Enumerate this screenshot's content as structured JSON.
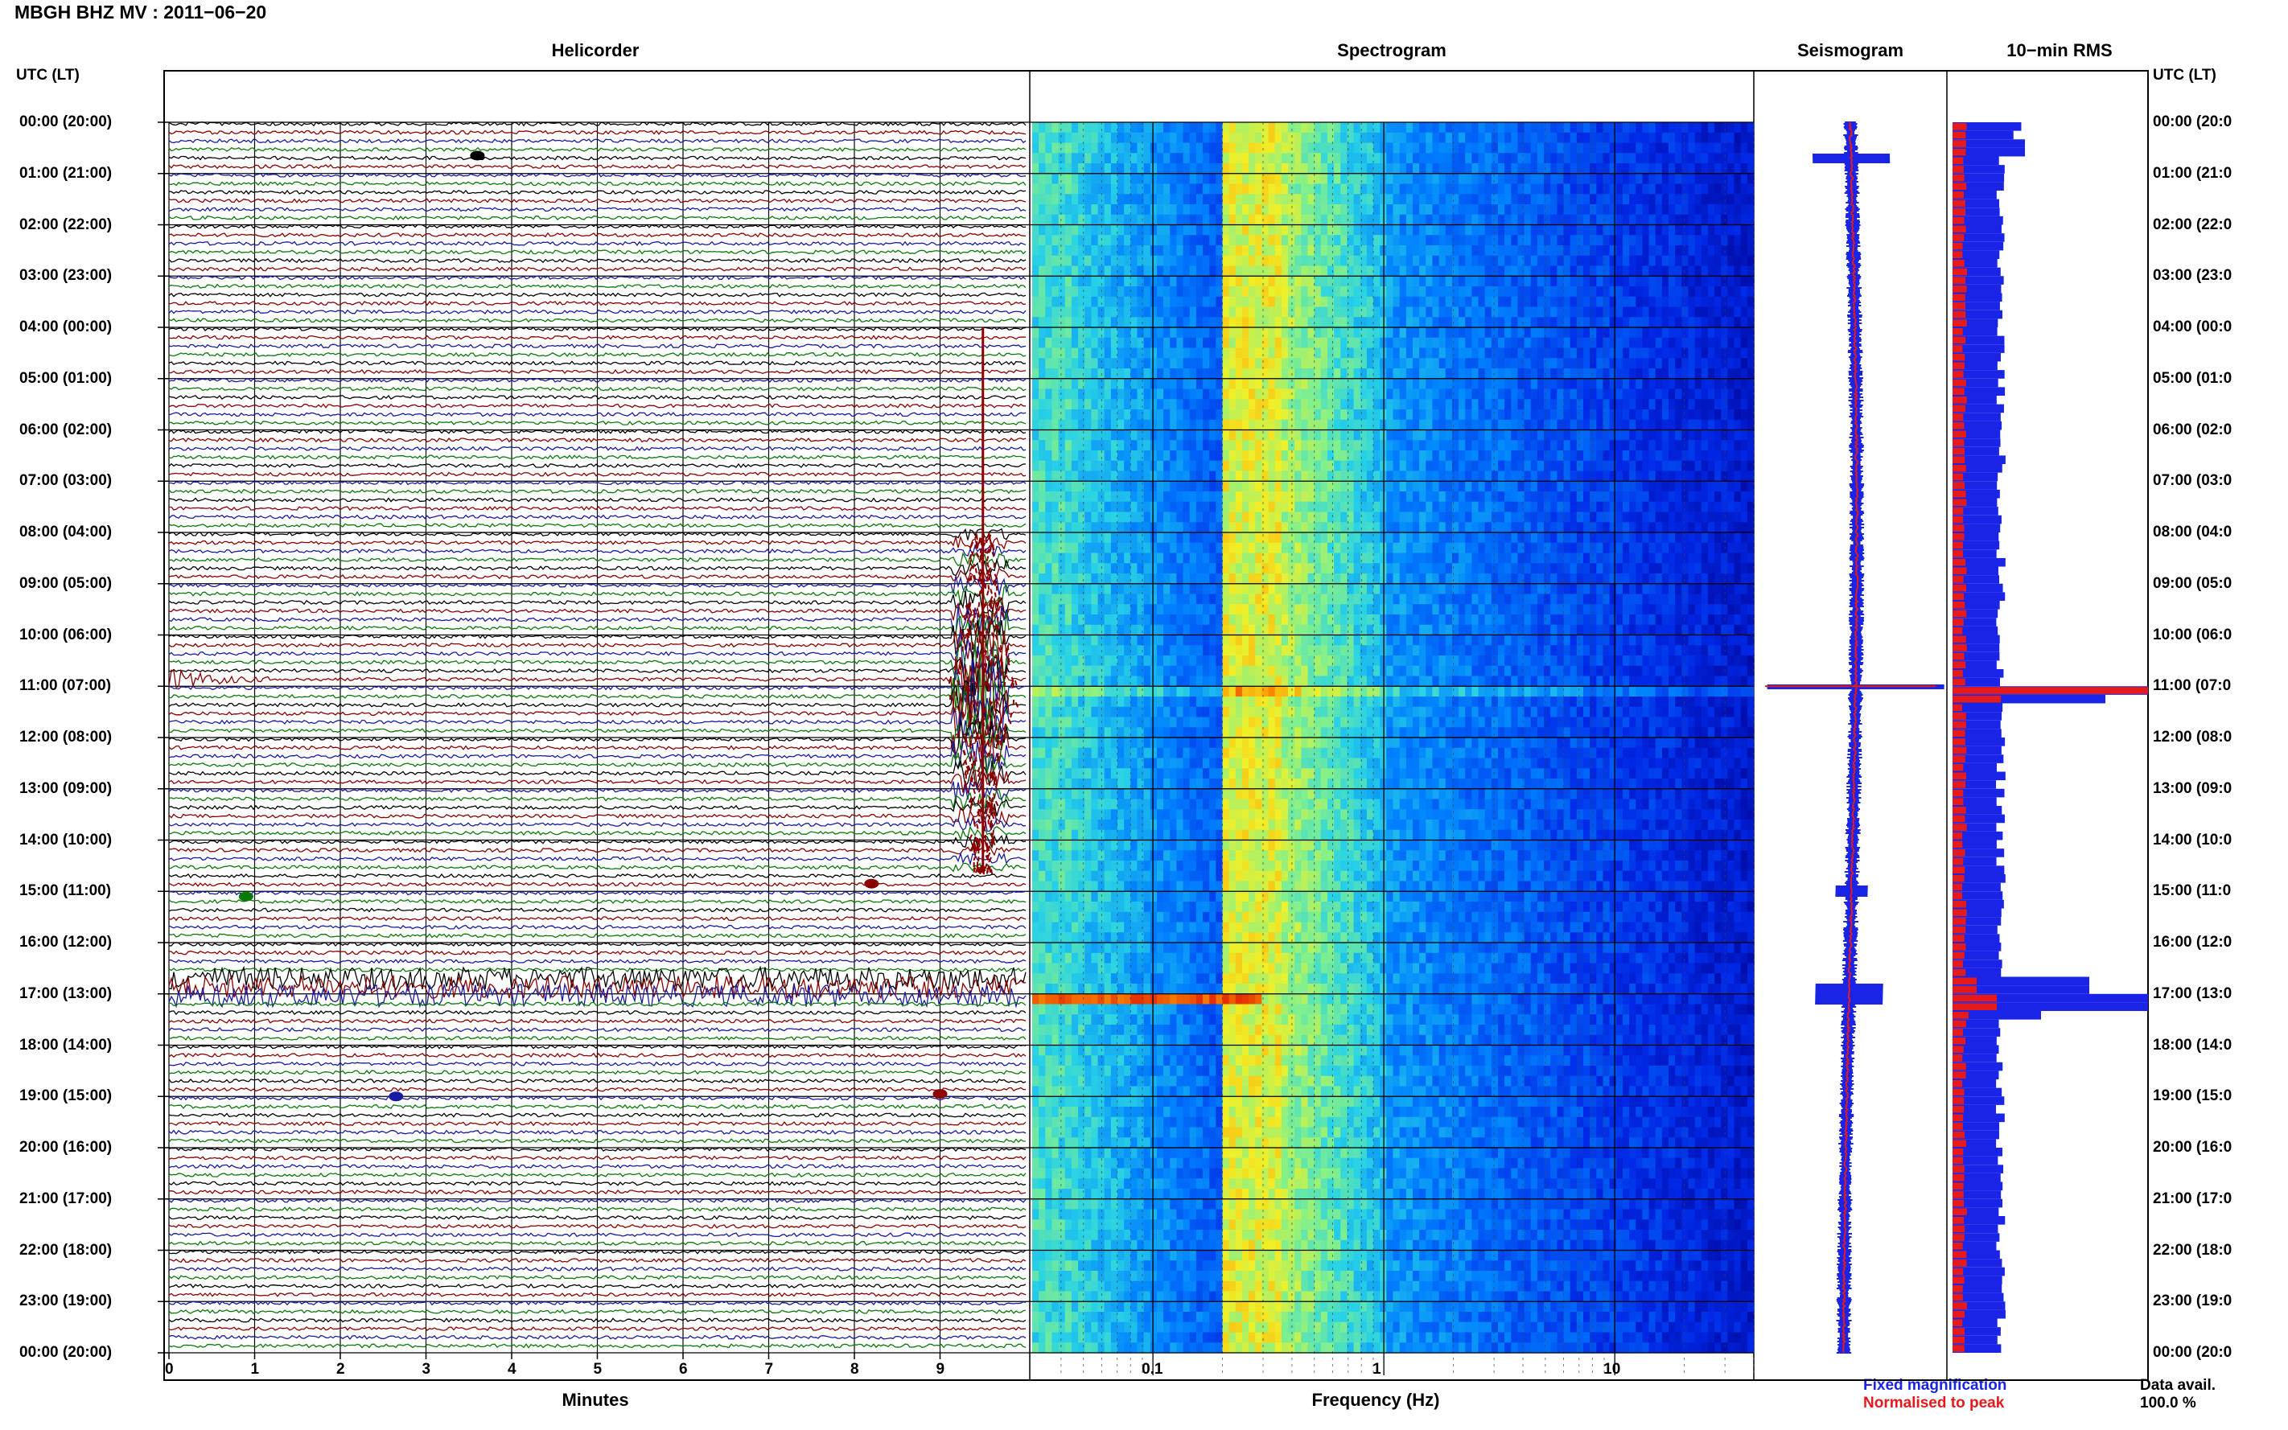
{
  "header": {
    "title": "MBGH BHZ MV : 2011−06−20"
  },
  "panels": {
    "helicorder": "Helicorder",
    "spectrogram": "Spectrogram",
    "seismogram": "Seismogram",
    "rms": "10−min RMS"
  },
  "axis": {
    "left_label": "UTC (LT)",
    "right_label": "UTC (LT)",
    "xlabel_helicorder": "Minutes",
    "xlabel_spectrogram": "Frequency (Hz)",
    "time_ticks_left": [
      "00:00 (20:00)",
      "01:00 (21:00)",
      "02:00 (22:00)",
      "03:00 (23:00)",
      "04:00 (00:00)",
      "05:00 (01:00)",
      "06:00 (02:00)",
      "07:00 (03:00)",
      "08:00 (04:00)",
      "09:00 (05:00)",
      "10:00 (06:00)",
      "11:00 (07:00)",
      "12:00 (08:00)",
      "13:00 (09:00)",
      "14:00 (10:00)",
      "15:00 (11:00)",
      "16:00 (12:00)",
      "17:00 (13:00)",
      "18:00 (14:00)",
      "19:00 (15:00)",
      "20:00 (16:00)",
      "21:00 (17:00)",
      "22:00 (18:00)",
      "23:00 (19:00)",
      "00:00 (20:00)"
    ],
    "time_ticks_right": [
      "00:00 (20:0",
      "01:00 (21:0",
      "02:00 (22:0",
      "03:00 (23:0",
      "04:00 (00:0",
      "05:00 (01:0",
      "06:00 (02:0",
      "07:00 (03:0",
      "08:00 (04:0",
      "09:00 (05:0",
      "10:00 (06:0",
      "11:00 (07:0",
      "12:00 (08:0",
      "13:00 (09:0",
      "14:00 (10:0",
      "15:00 (11:0",
      "16:00 (12:0",
      "17:00 (13:0",
      "18:00 (14:0",
      "19:00 (15:0",
      "20:00 (16:0",
      "21:00 (17:0",
      "22:00 (18:0",
      "23:00 (19:0",
      "00:00 (20:0"
    ],
    "minute_ticks": [
      "0",
      "1",
      "2",
      "3",
      "4",
      "5",
      "6",
      "7",
      "8",
      "9"
    ],
    "freq_ticks": [
      "0.1",
      "1",
      "10"
    ]
  },
  "legend": {
    "fixed": "Fixed magnification",
    "normalised": "Normalised to peak",
    "data_avail_label": "Data avail.",
    "data_avail_value": "100.0 %"
  },
  "colors": {
    "trace_cycle": [
      "#000000",
      "#8b0000",
      "#1a1aa0",
      "#0a7a0a"
    ],
    "fixed": "#1a24e6",
    "normalised": "#e61a1a"
  },
  "chart_data": {
    "type": "heatmap",
    "x_minutes_range": [
      0,
      10
    ],
    "freq_range_hz": [
      0.03,
      40
    ],
    "freq_scale": "log",
    "hours_range": [
      0,
      24
    ],
    "events": [
      {
        "time_utc": "00:37",
        "minute": 3.6,
        "amplitude": "small"
      },
      {
        "time_utc": "10:59",
        "minute": 0.0,
        "amplitude": "medium"
      },
      {
        "time_utc": "11:09",
        "minute": 9.5,
        "amplitude": "large"
      },
      {
        "time_utc": "15:09",
        "minute": 0.9,
        "amplitude": "small"
      },
      {
        "time_utc": "15:00",
        "minute": 8.2,
        "amplitude": "small"
      },
      {
        "time_utc": "16:40",
        "minute": 0.0,
        "amplitude": "large noise band"
      },
      {
        "time_utc": "19:00",
        "minute": 9.0,
        "amplitude": "small"
      }
    ],
    "rms_peaks": [
      {
        "time_utc": "11:00",
        "level": "maximum"
      },
      {
        "time_utc": "17:00",
        "level": "high"
      }
    ]
  }
}
